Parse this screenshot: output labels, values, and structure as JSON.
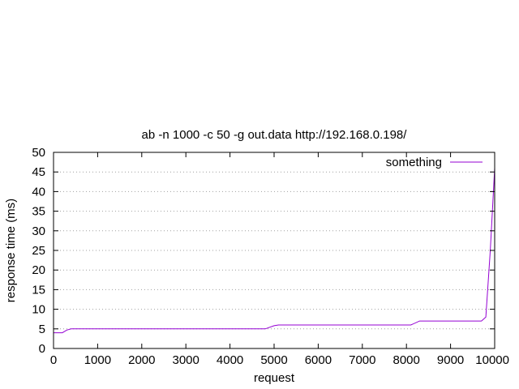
{
  "chart_data": {
    "type": "line",
    "title": "ab -n 1000 -c 50 -g out.data http://192.168.0.198/",
    "xlabel": "request",
    "ylabel": "response time (ms)",
    "xlim": [
      0,
      10000
    ],
    "ylim": [
      0,
      50
    ],
    "xticks": [
      0,
      1000,
      2000,
      3000,
      4000,
      5000,
      6000,
      7000,
      8000,
      9000,
      10000
    ],
    "yticks": [
      0,
      5,
      10,
      15,
      20,
      25,
      30,
      35,
      40,
      45,
      50
    ],
    "grid": "horizontal dotted",
    "legend": "top-right",
    "series": [
      {
        "name": "something",
        "color": "#9400d3",
        "x": [
          0,
          200,
          300,
          400,
          4800,
          5000,
          5100,
          8100,
          8300,
          9700,
          9800,
          9900,
          10000
        ],
        "y": [
          4,
          4,
          4.7,
          5,
          5,
          5.8,
          6,
          6,
          7,
          7,
          8,
          25,
          46
        ]
      }
    ]
  }
}
